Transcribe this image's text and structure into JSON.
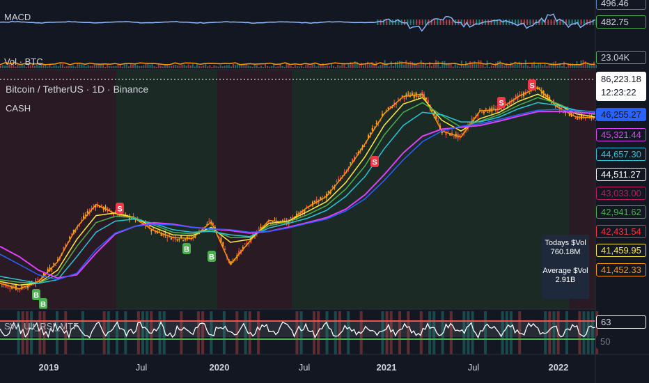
{
  "symbol": {
    "title": "Bitcoin / TetherUS · 1D · Binance",
    "strategy": "CASH"
  },
  "macd_pane": {
    "label": "MACD",
    "price_tags": [
      "496.46",
      "482.75"
    ]
  },
  "volume_pane": {
    "label": "Vol · BTC",
    "price_tag": "23.04K"
  },
  "rsi_pane": {
    "label": "SW_Ult_RSI_MTF",
    "price_tags": [
      "63",
      "50"
    ]
  },
  "price_axis": {
    "last_price": "86,223.18",
    "countdown": "12:23:22",
    "ma_tags": [
      {
        "value": "46,255.27",
        "color": "#2962ff"
      },
      {
        "value": "45,321.44",
        "color": "#e040fb"
      },
      {
        "value": "44,657.30",
        "color": "#26c6da"
      },
      {
        "value": "44,511.27",
        "color": "#ffffff"
      },
      {
        "value": "43,033.00",
        "color": "#c2185b"
      },
      {
        "value": "42,941.62",
        "color": "#4caf50"
      },
      {
        "value": "42,431.54",
        "color": "#f23645"
      },
      {
        "value": "41,459.95",
        "color": "#ffeb3b"
      },
      {
        "value": "41,452.33",
        "color": "#ff9800"
      }
    ]
  },
  "volume_info": {
    "todays_label": "Todays $Vol",
    "todays_value": "760.18M",
    "average_label": "Average $Vol",
    "average_value": "2.91B"
  },
  "time_axis": {
    "ticks": [
      {
        "label": "2019",
        "bold": true
      },
      {
        "label": "Jul",
        "bold": false
      },
      {
        "label": "2020",
        "bold": true
      },
      {
        "label": "Jul",
        "bold": false
      },
      {
        "label": "2021",
        "bold": true
      },
      {
        "label": "Jul",
        "bold": false
      },
      {
        "label": "2022",
        "bold": true
      }
    ]
  },
  "signals": [
    {
      "label": "S",
      "type": "sell"
    },
    {
      "label": "S",
      "type": "sell"
    },
    {
      "label": "S",
      "type": "sell"
    },
    {
      "label": "S",
      "type": "sell"
    },
    {
      "label": "B",
      "type": "buy"
    },
    {
      "label": "B",
      "type": "buy"
    },
    {
      "label": "B",
      "type": "buy"
    },
    {
      "label": "B",
      "type": "buy"
    }
  ],
  "colors": {
    "background": "#131722",
    "bull_zone": "#1c2a26",
    "bear_zone": "#2a1a24",
    "sell": "#f23645",
    "buy": "#4caf50",
    "macd_line": "#8ab4f8",
    "volume": "#ff9800",
    "rsi_line": "#ffffff"
  },
  "chart_data": {
    "type": "line",
    "title": "Bitcoin / TetherUS · 1D · Binance",
    "x_ticks": [
      "2019",
      "Jul",
      "2020",
      "Jul",
      "2021",
      "Jul",
      "2022"
    ],
    "series": [
      {
        "values": [
          3800,
          3500,
          3900,
          5200,
          8600,
          12000,
          10500,
          9800,
          8200,
          7400,
          7300,
          9300,
          5000,
          7000,
          9500,
          9200,
          11500,
          13500,
          19000,
          29000,
          45000,
          58000,
          60000,
          35000,
          32000,
          47000,
          48000,
          58000,
          66000,
          50000,
          43000,
          42500
        ]
      },
      {
        "values": [
          3900,
          3700,
          3800,
          4600,
          7200,
          10200,
          10600,
          9900,
          8600,
          7700,
          7600,
          8600,
          6900,
          7200,
          9100,
          9400,
          10800,
          12500,
          16500,
          24000,
          38000,
          52000,
          57000,
          41000,
          35000,
          42000,
          46000,
          54000,
          60000,
          52000,
          45000,
          43000
        ]
      },
      {
        "values": [
          4000,
          3850,
          3800,
          4300,
          6500,
          9200,
          10100,
          9900,
          8900,
          8000,
          7800,
          8300,
          7400,
          7400,
          8800,
          9300,
          10300,
          11800,
          15000,
          21000,
          33000,
          46000,
          53000,
          44000,
          37000,
          40500,
          44500,
          51000,
          57000,
          52500,
          46500,
          44600
        ]
      },
      {
        "values": [
          4200,
          4000,
          3800,
          4000,
          5600,
          8000,
          9400,
          9700,
          9100,
          8300,
          8000,
          8100,
          7700,
          7500,
          8500,
          9100,
          9800,
          11000,
          13500,
          18000,
          27000,
          38000,
          46000,
          44500,
          40000,
          40000,
          43000,
          48500,
          53000,
          51000,
          47500,
          46300
        ]
      },
      {
        "values": [
          6500,
          5600,
          4600,
          4100,
          4300,
          5900,
          7800,
          8700,
          9200,
          9000,
          8600,
          8400,
          8200,
          7900,
          8100,
          8600,
          9200,
          9900,
          11200,
          13800,
          18500,
          25500,
          32500,
          36000,
          37000,
          38000,
          40500,
          43500,
          46500,
          46600,
          45900,
          45300
        ]
      }
    ],
    "ylim": [
      3000,
      70000
    ],
    "log_scale": true,
    "grid": false
  }
}
